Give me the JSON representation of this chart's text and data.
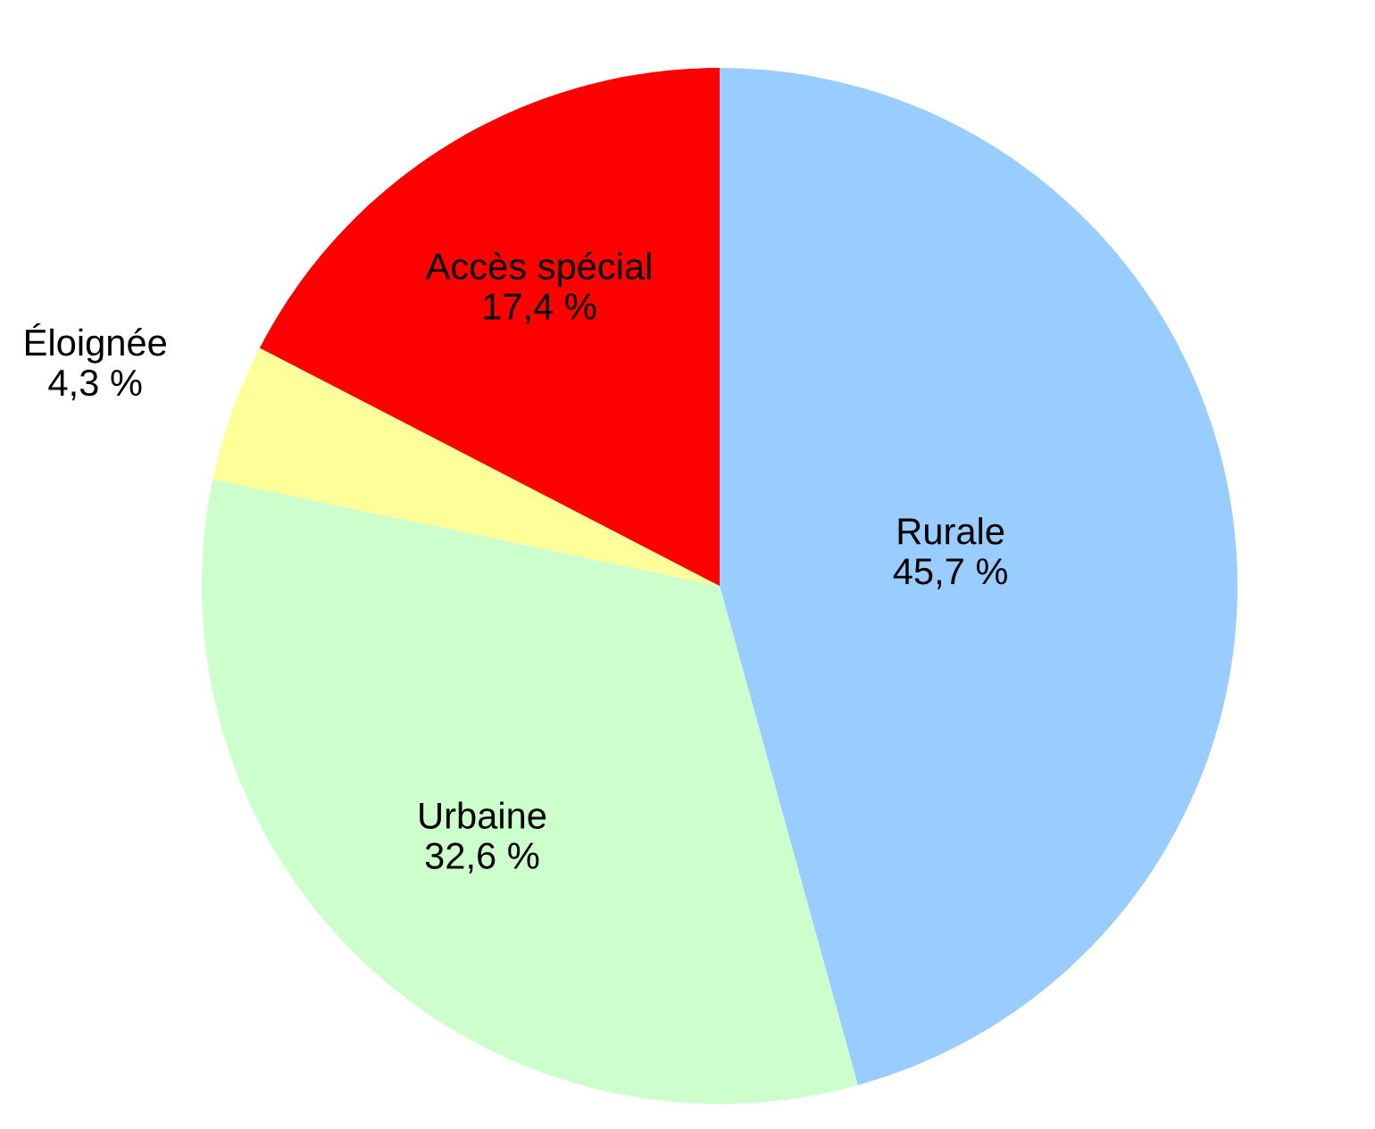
{
  "chart_data": {
    "type": "pie",
    "categories": [
      "Rurale",
      "Urbaine",
      "Éloignée",
      "Accès spécial"
    ],
    "values": [
      45.7,
      32.6,
      4.3,
      17.4
    ],
    "value_labels": [
      "45,7 %",
      "32,6 %",
      "4,3 %",
      "17,4 %"
    ],
    "colors": [
      "#99ccff",
      "#ccffcc",
      "#ffff99",
      "#ff0000"
    ]
  }
}
